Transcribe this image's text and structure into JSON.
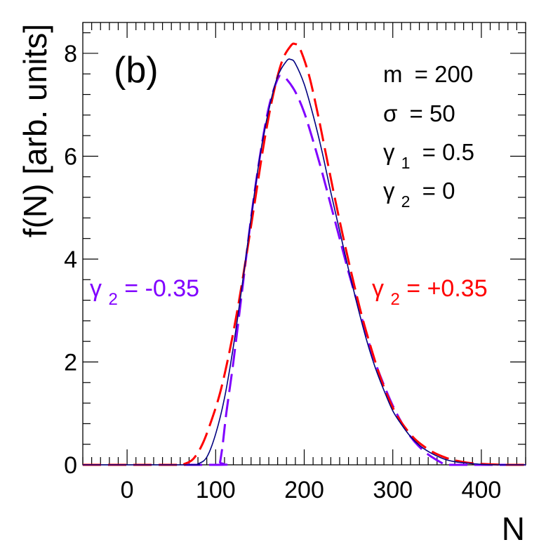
{
  "chart_data": {
    "type": "line",
    "panel_label": "(b)",
    "xlabel": "N",
    "ylabel": "f(N)  [arb. units]",
    "xlim": [
      -50,
      450
    ],
    "ylim": [
      0,
      8.6
    ],
    "x_major_ticks": [
      0,
      100,
      200,
      300,
      400
    ],
    "x_minor_step": 10,
    "y_major_ticks": [
      0,
      2,
      4,
      6,
      8
    ],
    "y_minor_step": 0.4,
    "grid": false,
    "parameters": [
      {
        "symbol": "m",
        "subscript": "",
        "value": "= 200"
      },
      {
        "symbol": "σ",
        "subscript": "",
        "value": "= 50"
      },
      {
        "symbol": "γ",
        "subscript": "1",
        "value": "= 0.5"
      },
      {
        "symbol": "γ",
        "subscript": "2",
        "value": "= 0"
      }
    ],
    "series": [
      {
        "name": "γ2 = 0",
        "color": "#000080",
        "style": "solid",
        "x": [
          -50,
          70,
          80,
          90,
          100,
          110,
          120,
          130,
          140,
          150,
          160,
          170,
          180,
          185,
          190,
          200,
          210,
          220,
          230,
          240,
          250,
          260,
          270,
          280,
          290,
          300,
          310,
          320,
          330,
          340,
          350,
          360,
          370,
          380,
          400,
          420,
          450
        ],
        "y": [
          0,
          0,
          0.02,
          0.15,
          0.6,
          1.3,
          2.3,
          3.5,
          4.8,
          6.0,
          6.9,
          7.55,
          7.85,
          7.88,
          7.8,
          7.4,
          6.8,
          6.1,
          5.3,
          4.55,
          3.8,
          3.1,
          2.45,
          1.9,
          1.45,
          1.05,
          0.78,
          0.55,
          0.38,
          0.26,
          0.17,
          0.1,
          0.06,
          0.04,
          0.01,
          0.0,
          0.0
        ]
      },
      {
        "name": "γ2 = +0.35",
        "label": "γ2 = +0.35",
        "color": "#ff0000",
        "style": "dashed",
        "x": [
          -50,
          55,
          65,
          75,
          85,
          95,
          105,
          115,
          125,
          135,
          145,
          155,
          165,
          175,
          185,
          190,
          195,
          205,
          215,
          225,
          235,
          245,
          255,
          265,
          275,
          285,
          295,
          305,
          315,
          325,
          335,
          345,
          355,
          365,
          375,
          390,
          410,
          430,
          450
        ],
        "y": [
          0,
          0,
          0.02,
          0.12,
          0.4,
          0.85,
          1.4,
          2.15,
          3.05,
          4.1,
          5.2,
          6.3,
          7.2,
          7.85,
          8.15,
          8.18,
          8.1,
          7.6,
          6.85,
          6.0,
          5.15,
          4.35,
          3.6,
          2.9,
          2.3,
          1.75,
          1.3,
          0.95,
          0.7,
          0.5,
          0.36,
          0.25,
          0.17,
          0.11,
          0.07,
          0.03,
          0.01,
          0.0,
          0.0
        ]
      },
      {
        "name": "γ2 = -0.35",
        "label": "γ2 = -0.35",
        "color": "#8000ff",
        "style": "dashed",
        "x": [
          -50,
          104,
          105,
          108,
          112,
          120,
          130,
          140,
          150,
          160,
          170,
          175,
          180,
          190,
          200,
          210,
          220,
          230,
          240,
          250,
          260,
          270,
          280,
          290,
          300,
          310,
          320,
          330,
          340,
          350,
          356,
          360,
          380,
          400,
          450
        ],
        "y": [
          0,
          0,
          0.05,
          0.4,
          1.0,
          2.0,
          3.4,
          4.8,
          6.0,
          6.95,
          7.5,
          7.55,
          7.5,
          7.25,
          6.85,
          6.3,
          5.7,
          5.05,
          4.4,
          3.75,
          3.15,
          2.55,
          2.0,
          1.55,
          1.15,
          0.82,
          0.55,
          0.35,
          0.2,
          0.09,
          0.03,
          0.0,
          0.0,
          0.0,
          0.0
        ]
      }
    ],
    "annotations": {
      "left": {
        "text": "γ",
        "subscript": "2",
        "rest": " = -0.35",
        "color": "#8000ff"
      },
      "right": {
        "text": "γ",
        "subscript": "2",
        "rest": " = +0.35",
        "color": "#ff0000"
      }
    }
  }
}
